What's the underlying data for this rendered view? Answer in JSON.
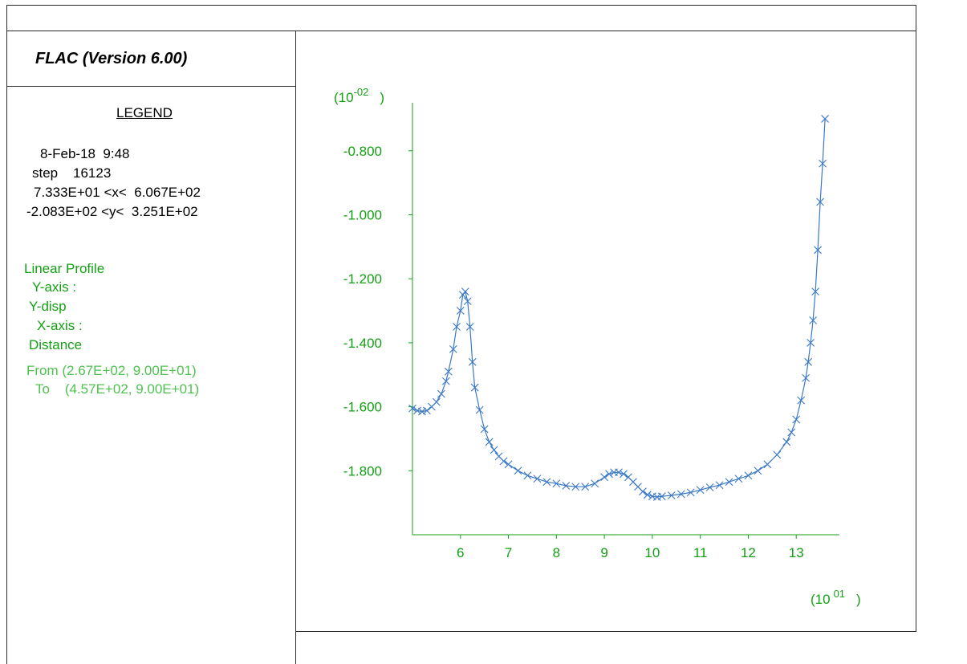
{
  "header": {
    "title": "FLAC (Version 6.00)"
  },
  "legend": {
    "title": "LEGEND",
    "date_time": "8-Feb-18  9:48",
    "step": "step    16123",
    "x_range": "7.333E+01 <x<  6.067E+02",
    "y_range": "-2.083E+02 <y<  3.251E+02",
    "plot_type": "Linear Profile",
    "y_axis_label": "Y-axis :",
    "y_axis_value": "Y-disp",
    "x_axis_label": "X-axis :",
    "x_axis_value": "Distance",
    "from": "From (2.67E+02, 9.00E+01)",
    "to": "To    (4.57E+02, 9.00E+01)"
  },
  "colors": {
    "axis": "#14a014",
    "series": "#3a78c8",
    "frame": "#2b2b2b"
  },
  "chart_data": {
    "type": "line",
    "y_multiplier_label": {
      "base": "(10",
      "exp": "-02",
      "close": ")"
    },
    "x_multiplier_label": {
      "base": "(10",
      "exp": "01",
      "close": ")"
    },
    "xlim": [
      5.0,
      13.9
    ],
    "ylim": [
      -2.0,
      -0.65
    ],
    "x_ticks": [
      6,
      7,
      8,
      9,
      10,
      11,
      12,
      13
    ],
    "x_tick_labels": [
      "6",
      "7",
      "8",
      "9",
      "10",
      "11",
      "12",
      "13"
    ],
    "y_ticks": [
      -0.8,
      -1.0,
      -1.2,
      -1.4,
      -1.6,
      -1.8
    ],
    "y_tick_labels": [
      "-0.800",
      "-1.000",
      "-1.200",
      "-1.400",
      "-1.600",
      "-1.800"
    ],
    "marker": "x",
    "series": [
      {
        "x": [
          5.0,
          5.1,
          5.2,
          5.3,
          5.4,
          5.5,
          5.6,
          5.7,
          5.75,
          5.85,
          5.92,
          6.0,
          6.05,
          6.1,
          6.15,
          6.2,
          6.25,
          6.3,
          6.4,
          6.5,
          6.6,
          6.7,
          6.8,
          6.9,
          7.0,
          7.2,
          7.4,
          7.6,
          7.8,
          8.0,
          8.2,
          8.4,
          8.6,
          8.8,
          9.0,
          9.1,
          9.2,
          9.3,
          9.4,
          9.5,
          9.6,
          9.7,
          9.8,
          9.9,
          10.0,
          10.1,
          10.2,
          10.4,
          10.6,
          10.8,
          11.0,
          11.2,
          11.4,
          11.6,
          11.8,
          12.0,
          12.2,
          12.4,
          12.6,
          12.8,
          12.9,
          13.0,
          13.1,
          13.2,
          13.25,
          13.3,
          13.35,
          13.4,
          13.45,
          13.5,
          13.55,
          13.6
        ],
        "y": [
          -1.605,
          -1.612,
          -1.615,
          -1.612,
          -1.6,
          -1.585,
          -1.56,
          -1.52,
          -1.49,
          -1.42,
          -1.35,
          -1.3,
          -1.25,
          -1.24,
          -1.27,
          -1.35,
          -1.46,
          -1.54,
          -1.61,
          -1.67,
          -1.71,
          -1.735,
          -1.755,
          -1.77,
          -1.78,
          -1.8,
          -1.815,
          -1.825,
          -1.835,
          -1.84,
          -1.847,
          -1.85,
          -1.85,
          -1.84,
          -1.82,
          -1.81,
          -1.805,
          -1.805,
          -1.81,
          -1.82,
          -1.835,
          -1.85,
          -1.865,
          -1.875,
          -1.88,
          -1.882,
          -1.88,
          -1.877,
          -1.873,
          -1.868,
          -1.86,
          -1.852,
          -1.845,
          -1.835,
          -1.825,
          -1.815,
          -1.8,
          -1.78,
          -1.75,
          -1.71,
          -1.68,
          -1.64,
          -1.58,
          -1.51,
          -1.46,
          -1.4,
          -1.33,
          -1.24,
          -1.11,
          -0.96,
          -0.84,
          -0.7
        ]
      }
    ]
  }
}
